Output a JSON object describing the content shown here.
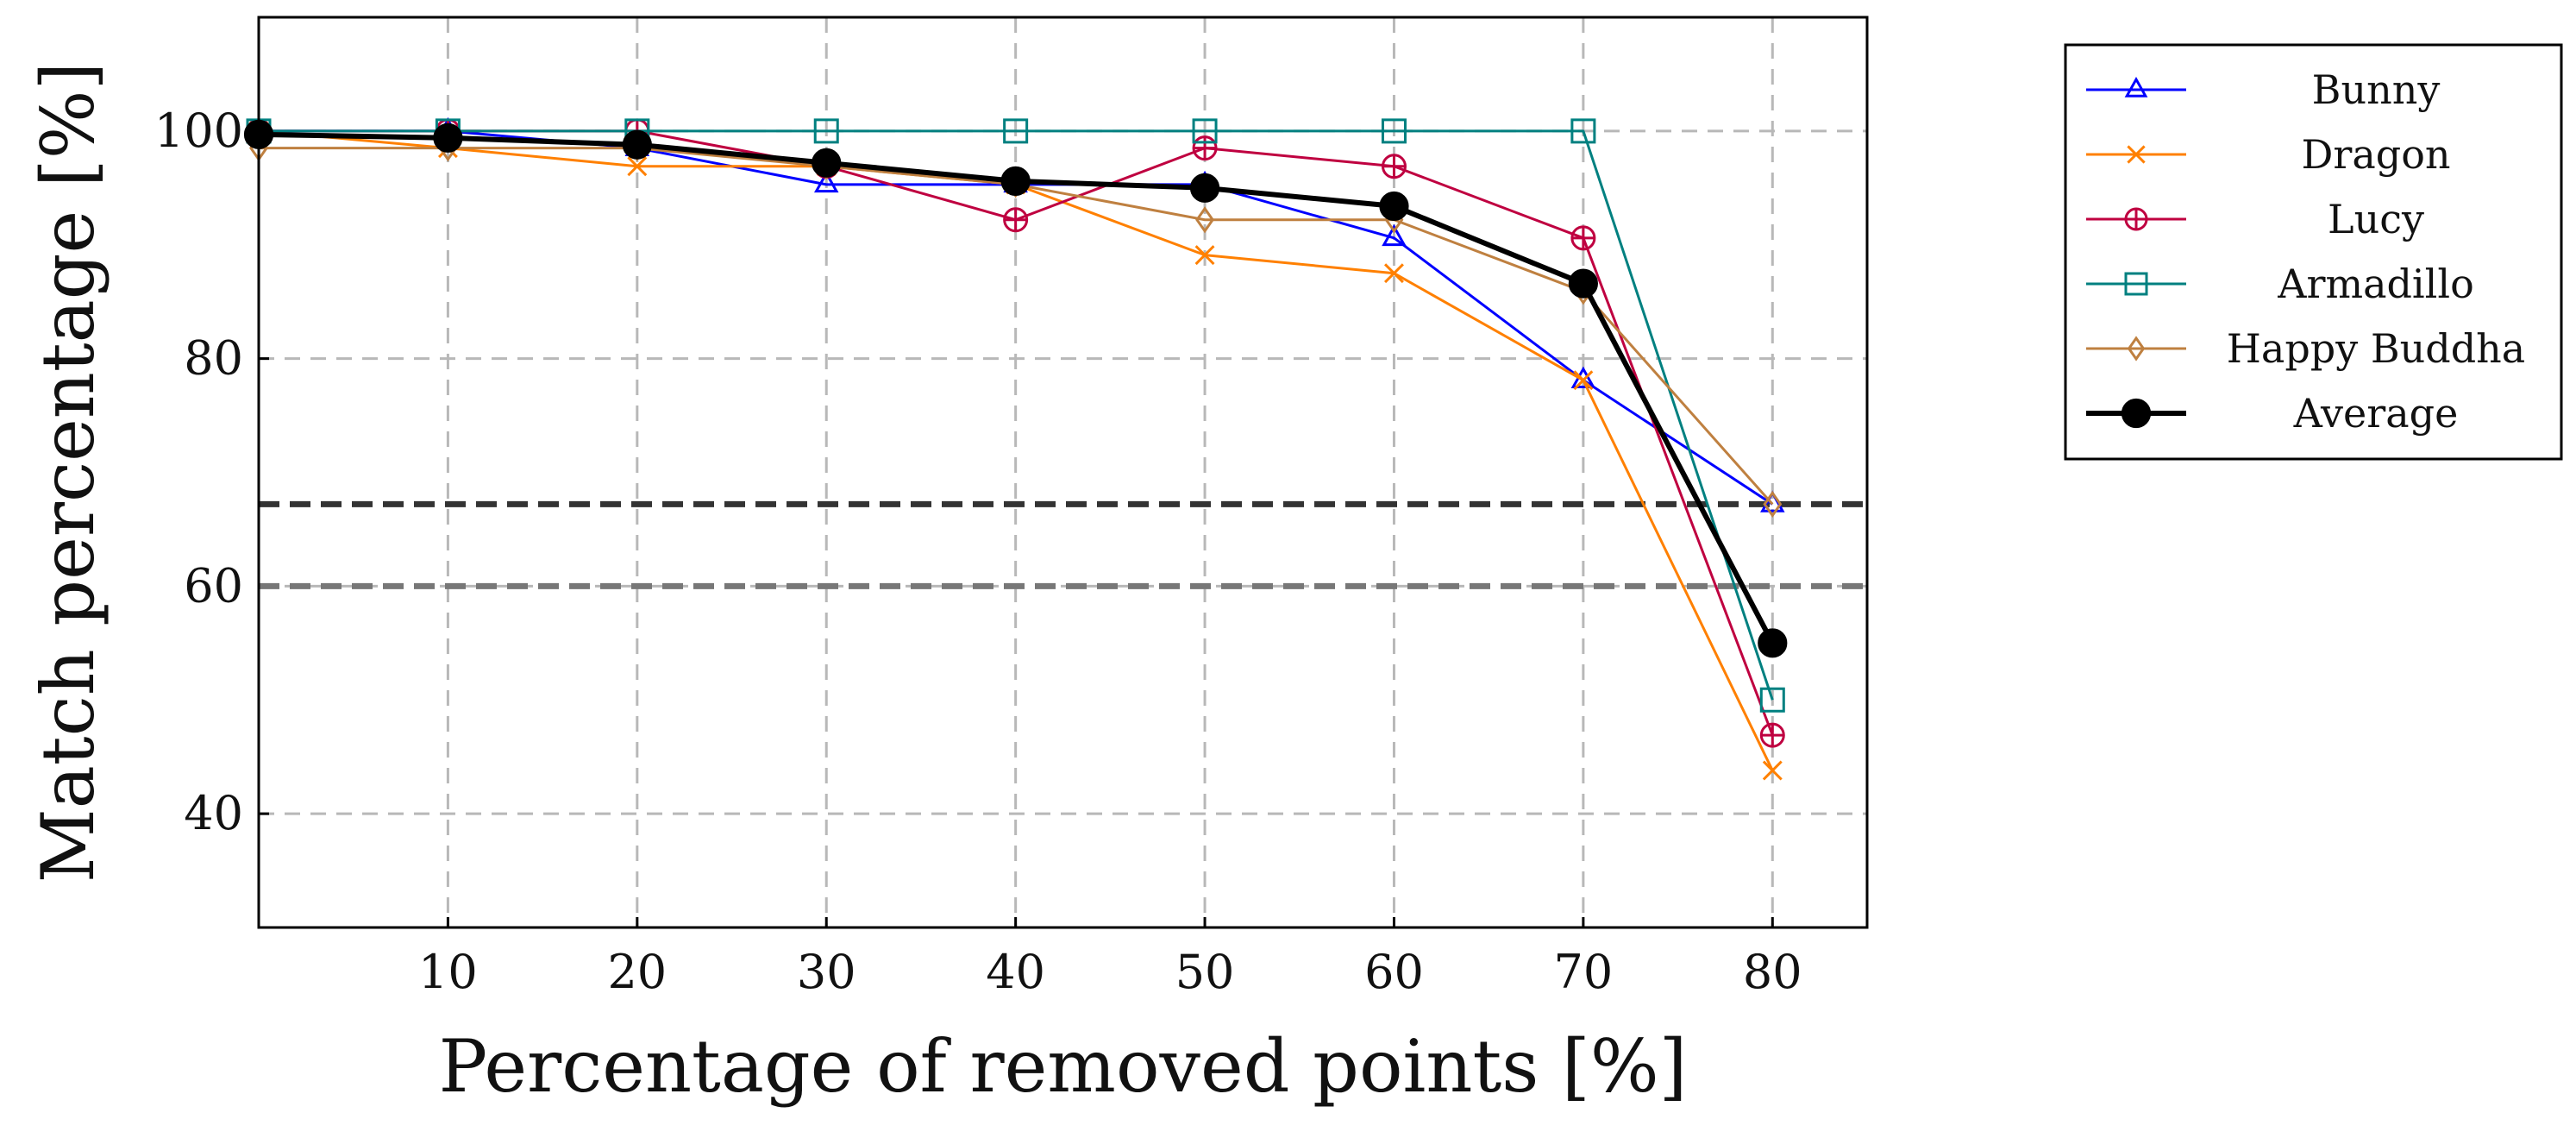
{
  "chart_data": {
    "type": "line",
    "xlabel": "Percentage of removed points [%]",
    "ylabel": "Match percentage [%]",
    "xlim": [
      0,
      85
    ],
    "ylim": [
      30,
      110
    ],
    "xticks": [
      10,
      20,
      30,
      40,
      50,
      60,
      70,
      80
    ],
    "yticks": [
      40,
      60,
      80,
      100
    ],
    "grid": true,
    "legend_position": "outside-top-right",
    "x": [
      0,
      10,
      20,
      30,
      40,
      50,
      60,
      70,
      80
    ],
    "series": [
      {
        "name": "Bunny",
        "color": "#0000ff",
        "marker": "triangle",
        "values": [
          100,
          100,
          98.5,
          95.3,
          95.3,
          95.3,
          90.6,
          78.1,
          67.2
        ]
      },
      {
        "name": "Dragon",
        "color": "#ff8000",
        "marker": "x",
        "values": [
          100,
          98.5,
          96.9,
          96.9,
          95.3,
          89.1,
          87.5,
          78.1,
          43.8
        ]
      },
      {
        "name": "Lucy",
        "color": "#bf0040",
        "marker": "circle-plus",
        "values": [
          100,
          100,
          100,
          96.9,
          92.2,
          98.5,
          96.9,
          90.6,
          46.9
        ]
      },
      {
        "name": "Armadillo",
        "color": "#008080",
        "marker": "square",
        "values": [
          100,
          100,
          100,
          100,
          100,
          100,
          100,
          100,
          50
        ]
      },
      {
        "name": "Happy Buddha",
        "color": "#bf8040",
        "marker": "diamond",
        "values": [
          98.5,
          98.5,
          98.5,
          96.9,
          95.3,
          92.2,
          92.2,
          85.9,
          67.2
        ]
      },
      {
        "name": "Average",
        "color": "#000000",
        "marker": "filled-circle",
        "values": [
          99.7,
          99.4,
          98.8,
          97.2,
          95.6,
          95.0,
          93.4,
          86.6,
          55.0
        ]
      }
    ],
    "reference_lines": [
      {
        "y": 67.2,
        "color": "#333333",
        "style": "dashed"
      },
      {
        "y": 60,
        "color": "#777777",
        "style": "dashed"
      }
    ]
  }
}
